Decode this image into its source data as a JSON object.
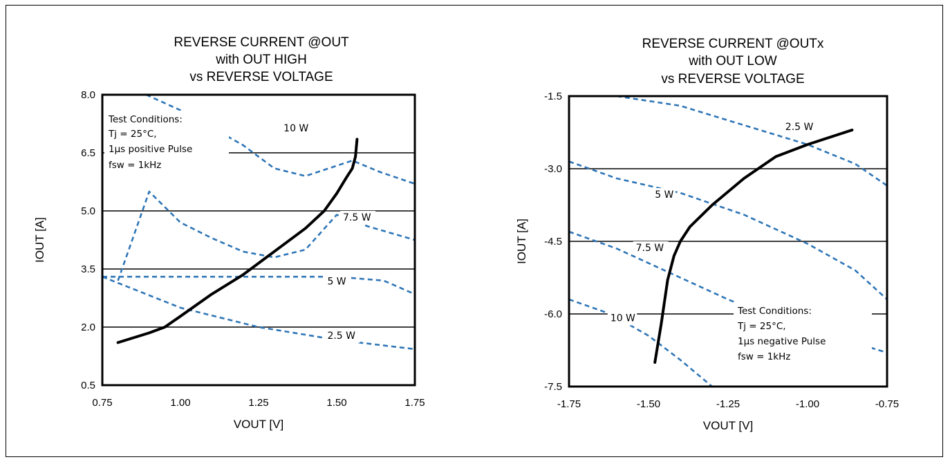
{
  "chart_data": [
    {
      "type": "line",
      "title": [
        "REVERSE CURRENT @OUT",
        "with OUT HIGH",
        "vs REVERSE VOLTAGE"
      ],
      "xlabel": "VOUT [V]",
      "ylabel": "IOUT [A]",
      "xlim": [
        0.75,
        1.75
      ],
      "ylim": [
        0.5,
        8.0
      ],
      "xticks": [
        "0.75",
        "1.00",
        "1.25",
        "1.50",
        "1.75"
      ],
      "yticks": [
        "0.5",
        "2.0",
        "3.5",
        "5.0",
        "6.5",
        "8.0"
      ],
      "grid_y": [
        2.0,
        3.5,
        5.0,
        6.5
      ],
      "colors": {
        "curve": "#000000",
        "power": "#2E75B6",
        "grid": "#000000"
      },
      "series": [
        {
          "name": "",
          "style": "solid",
          "x": [
            0.8,
            0.9,
            0.95,
            1.0,
            1.1,
            1.2,
            1.3,
            1.4,
            1.46,
            1.5,
            1.53,
            1.55,
            1.56,
            1.565
          ],
          "y": [
            1.6,
            1.85,
            2.0,
            2.28,
            2.85,
            3.35,
            3.95,
            4.55,
            5.0,
            5.45,
            5.85,
            6.1,
            6.4,
            6.85
          ]
        }
      ],
      "power_curves": [
        {
          "label": "10 W",
          "label_at": [
            1.33,
            7.05
          ],
          "x": [
            0.89,
            1.0,
            1.2,
            1.3,
            1.4,
            1.55,
            1.64,
            1.75
          ],
          "y": [
            8.0,
            7.6,
            6.7,
            6.1,
            5.9,
            6.3,
            6.0,
            5.7
          ]
        },
        {
          "label": "7.5 W",
          "label_at": [
            1.52,
            4.75
          ],
          "x": [
            0.8,
            0.9,
            1.0,
            1.1,
            1.2,
            1.3,
            1.4,
            1.5,
            1.6,
            1.75
          ],
          "y": [
            3.2,
            5.5,
            4.7,
            4.3,
            3.95,
            3.8,
            4.0,
            4.9,
            4.6,
            4.25
          ]
        },
        {
          "label": "5 W",
          "label_at": [
            1.47,
            3.1
          ],
          "x": [
            0.75,
            1.0,
            1.25,
            1.5,
            1.65,
            1.75
          ],
          "y": [
            3.3,
            3.3,
            3.3,
            3.3,
            3.2,
            2.85
          ]
        },
        {
          "label": "2.5 W",
          "label_at": [
            1.47,
            1.7
          ],
          "x": [
            0.75,
            1.0,
            1.25,
            1.5,
            1.75
          ],
          "y": [
            3.3,
            2.5,
            2.0,
            1.67,
            1.43
          ]
        }
      ],
      "annotation": [
        "Test Conditions:",
        "Tj = 25°C,",
        "1µs positive Pulse",
        "fsw = 1kHz"
      ]
    },
    {
      "type": "line",
      "title": [
        "REVERSE CURRENT @OUTx",
        "with OUT LOW",
        "vs REVERSE VOLTAGE"
      ],
      "xlabel": "VOUT [V]",
      "ylabel": "IOUT [A]",
      "xlim": [
        -1.75,
        -0.75
      ],
      "ylim": [
        -7.5,
        -1.5
      ],
      "xticks": [
        "-1.75",
        "-1.50",
        "-1.25",
        "-1.00",
        "-0.75"
      ],
      "yticks": [
        "-7.5",
        "-6.0",
        "-4.5",
        "-3.0",
        "-1.5"
      ],
      "grid_y": [
        -3.0,
        -4.5,
        -6.0
      ],
      "colors": {
        "curve": "#000000",
        "power": "#2E75B6",
        "grid": "#000000"
      },
      "series": [
        {
          "name": "",
          "style": "solid",
          "x": [
            -1.48,
            -1.46,
            -1.44,
            -1.42,
            -1.4,
            -1.37,
            -1.3,
            -1.2,
            -1.1,
            -1.0,
            -0.86
          ],
          "y": [
            -7.0,
            -6.2,
            -5.3,
            -4.8,
            -4.5,
            -4.2,
            -3.75,
            -3.2,
            -2.75,
            -2.5,
            -2.2
          ]
        }
      ],
      "power_curves": [
        {
          "label": "2.5 W",
          "label_at": [
            -1.07,
            -2.2
          ],
          "x": [
            -1.6,
            -1.4,
            -1.2,
            -1.0,
            -0.85,
            -0.75
          ],
          "y": [
            -1.5,
            -1.7,
            -2.1,
            -2.5,
            -2.9,
            -3.35
          ]
        },
        {
          "label": "5 W",
          "label_at": [
            -1.48,
            -3.6
          ],
          "x": [
            -1.75,
            -1.6,
            -1.4,
            -1.2,
            -1.0,
            -0.85,
            -0.75
          ],
          "y": [
            -2.85,
            -3.2,
            -3.5,
            -3.95,
            -4.55,
            -5.1,
            -5.7
          ]
        },
        {
          "label": "7.5 W",
          "label_at": [
            -1.54,
            -4.7
          ],
          "x": [
            -1.75,
            -1.6,
            -1.4,
            -1.25,
            -1.1,
            -0.9,
            -0.75
          ],
          "y": [
            -4.3,
            -4.65,
            -5.25,
            -5.7,
            -6.1,
            -6.5,
            -6.8
          ]
        },
        {
          "label": "10 W",
          "label_at": [
            -1.62,
            -6.15
          ],
          "x": [
            -1.75,
            -1.62,
            -1.5,
            -1.4,
            -1.3
          ],
          "y": [
            -5.7,
            -6.0,
            -6.45,
            -6.95,
            -7.5
          ]
        }
      ],
      "annotation": [
        "Test Conditions:",
        "Tj = 25°C,",
        "1µs negative Pulse",
        "fsw = 1kHz"
      ]
    }
  ]
}
